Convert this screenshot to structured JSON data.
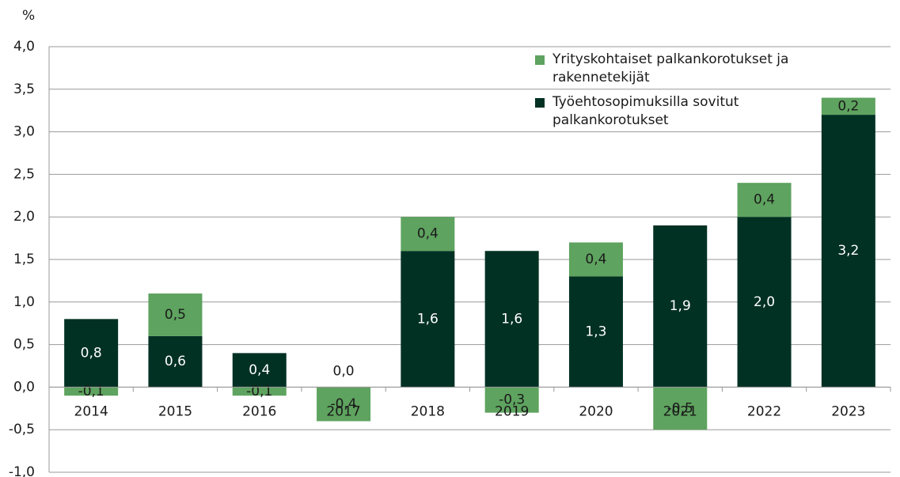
{
  "chart_data": {
    "type": "stacked_bar",
    "y_axis_label": "%",
    "categories": [
      "2014",
      "2015",
      "2016",
      "2017",
      "2018",
      "2019",
      "2020",
      "2021",
      "2022",
      "2023"
    ],
    "series": [
      {
        "name": "Työehtosopimuksilla sovitut palkankorotukset",
        "color": "#003123",
        "values": [
          0.8,
          0.6,
          0.4,
          0.0,
          1.6,
          1.6,
          1.3,
          1.9,
          2.0,
          3.2
        ],
        "value_labels": [
          "0,8",
          "0,6",
          "0,4",
          "0,0",
          "1,6",
          "1,6",
          "1,3",
          "1,9",
          "2,0",
          "3,2"
        ]
      },
      {
        "name": "Yrityskohtaiset palkankorotukset ja rakennetekijät",
        "color": "#5ea35f",
        "values": [
          -0.1,
          0.5,
          -0.1,
          -0.4,
          0.4,
          -0.3,
          0.4,
          -0.5,
          0.4,
          0.2
        ],
        "value_labels": [
          "-0,1",
          "0,5",
          "-0,1",
          "-0,4",
          "0,4",
          "-0,3",
          "0,4",
          "-0,5",
          "0,4",
          "0,2"
        ]
      }
    ],
    "ylim": [
      -1.0,
      4.0
    ],
    "yticks": [
      {
        "value": -1.0,
        "label": "-1,0"
      },
      {
        "value": -0.5,
        "label": "-0,5"
      },
      {
        "value": 0.0,
        "label": "0,0"
      },
      {
        "value": 0.5,
        "label": "0,5"
      },
      {
        "value": 1.0,
        "label": "1,0"
      },
      {
        "value": 1.5,
        "label": "1,5"
      },
      {
        "value": 2.0,
        "label": "2,0"
      },
      {
        "value": 2.5,
        "label": "2,5"
      },
      {
        "value": 3.0,
        "label": "3,0"
      },
      {
        "value": 3.5,
        "label": "3,5"
      },
      {
        "value": 4.0,
        "label": "4,0"
      }
    ],
    "grid": true,
    "legend": "upper right"
  }
}
